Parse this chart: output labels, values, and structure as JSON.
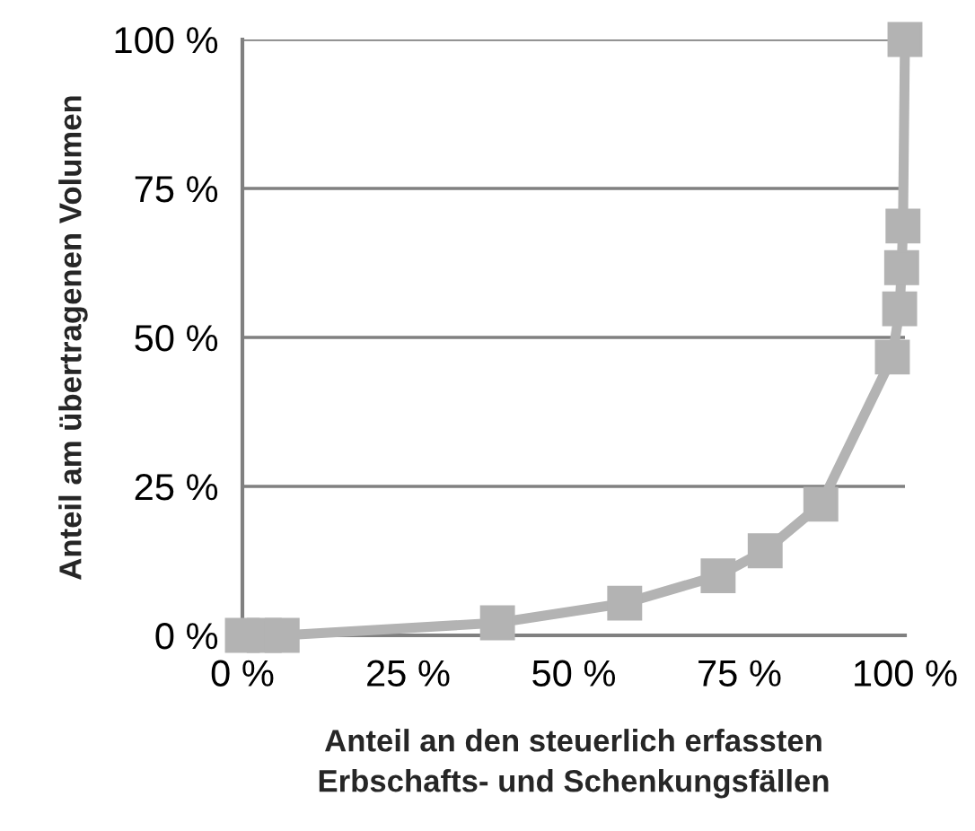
{
  "chart_data": {
    "type": "line",
    "xlabel": "Anteil an den steuerlich erfassten\nErbschafts- und Schenkungsfällen",
    "ylabel": "Anteil am übertragenen Volumen",
    "x": [
      0,
      3.3,
      6,
      38.5,
      57.7,
      71.8,
      78.9,
      87.3,
      98.1,
      99.2,
      99.5,
      99.7,
      100
    ],
    "series": [
      {
        "color": "#b3b3b3",
        "values": [
          0,
          0,
          0,
          2.1,
          5.4,
          10,
          14.2,
          22,
          46.7,
          54.8,
          61.7,
          68.7,
          100
        ]
      }
    ],
    "marker": "square",
    "line_style": "solid",
    "grid": "y",
    "xlim": [
      0,
      100
    ],
    "ylim": [
      0,
      100
    ],
    "xticks": [
      {
        "value": 0,
        "label": "0 %"
      },
      {
        "value": 25,
        "label": "25 %"
      },
      {
        "value": 50,
        "label": "50 %"
      },
      {
        "value": 75,
        "label": "75 %"
      },
      {
        "value": 100,
        "label": "100 %"
      }
    ],
    "yticks": [
      {
        "value": 0,
        "label": "0 %"
      },
      {
        "value": 25,
        "label": "25 %"
      },
      {
        "value": 50,
        "label": "50 %"
      },
      {
        "value": 75,
        "label": "75 %"
      },
      {
        "value": 100,
        "label": "100 %"
      }
    ]
  }
}
